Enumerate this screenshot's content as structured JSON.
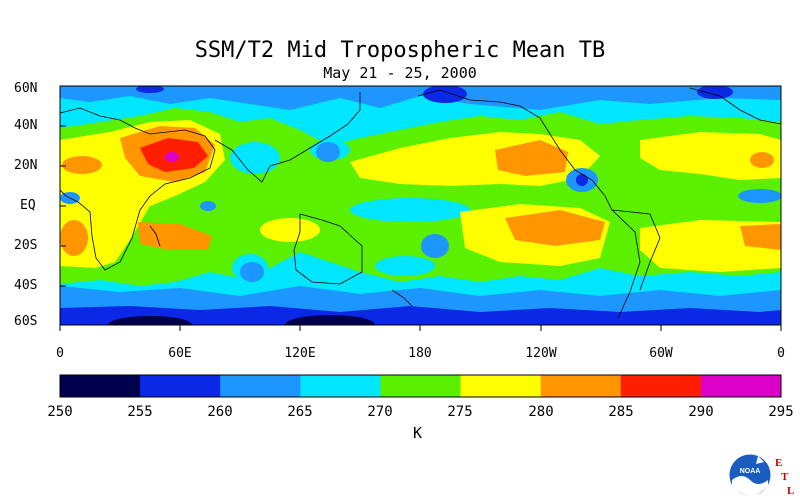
{
  "title": "SSM/T2 Mid Tropospheric Mean TB",
  "subtitle": "May 21 - 25, 2000",
  "map": {
    "lat_labels": [
      "60N",
      "40N",
      "20N",
      "EQ",
      "20S",
      "40S",
      "60S"
    ],
    "lon_labels": [
      "0",
      "60E",
      "120E",
      "180",
      "120W",
      "60W",
      "0"
    ]
  },
  "colorbar": {
    "ticks": [
      "250",
      "255",
      "260",
      "265",
      "270",
      "275",
      "280",
      "285",
      "290",
      "295"
    ],
    "units": "K",
    "colors": [
      "#00004c",
      "#0a28e6",
      "#1e96ff",
      "#00e6ff",
      "#5af000",
      "#ffff00",
      "#ff9600",
      "#ff1e00",
      "#dc00c8"
    ]
  },
  "logo": {
    "text": "NOAA",
    "letters": [
      "E",
      "T",
      "L"
    ],
    "colors": {
      "globe": "#1a5cbf",
      "letters": "#cc0000"
    }
  }
}
